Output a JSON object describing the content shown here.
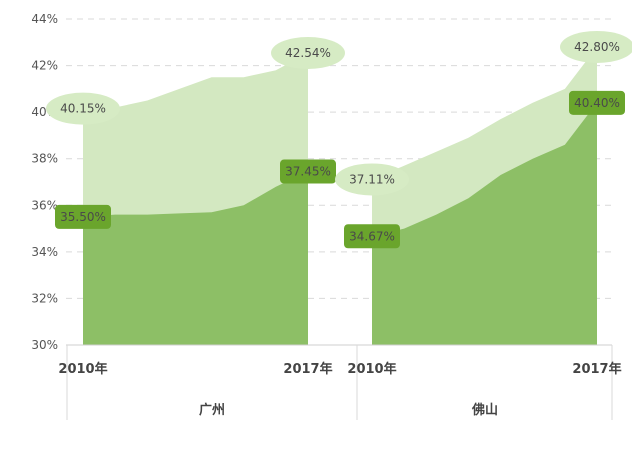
{
  "chart_data": {
    "type": "area",
    "ylim": [
      30,
      44
    ],
    "y_ticks": [
      "30%",
      "32%",
      "34%",
      "36%",
      "38%",
      "40%",
      "42%",
      "44%"
    ],
    "grid": true,
    "groups": [
      {
        "name": "广州",
        "x_labels": [
          "2010年",
          "2017年"
        ],
        "x": [
          2010,
          2011,
          2012,
          2013,
          2014,
          2015,
          2016,
          2017
        ],
        "series": [
          {
            "values": [
              40.15,
              40.2,
              40.5,
              41.0,
              41.5,
              41.5,
              41.8,
              42.54
            ],
            "color": "#d3e8c1",
            "start_label": "40.15%",
            "end_label": "42.54%"
          },
          {
            "values": [
              35.5,
              35.6,
              35.6,
              35.65,
              35.7,
              36.0,
              36.8,
              37.45
            ],
            "color": "#8dbf66",
            "start_label": "35.50%",
            "end_label": "37.45%"
          }
        ]
      },
      {
        "name": "佛山",
        "x_labels": [
          "2010年",
          "2017年"
        ],
        "x": [
          2010,
          2011,
          2012,
          2013,
          2014,
          2015,
          2016,
          2017
        ],
        "series": [
          {
            "values": [
              37.11,
              37.7,
              38.3,
              38.9,
              39.7,
              40.4,
              41.0,
              42.8
            ],
            "color": "#d3e8c1",
            "start_label": "37.11%",
            "end_label": "42.80%"
          },
          {
            "values": [
              34.67,
              35.0,
              35.6,
              36.3,
              37.3,
              38.0,
              38.6,
              40.4
            ],
            "color": "#8dbf66",
            "start_label": "34.67%",
            "end_label": "40.40%"
          }
        ]
      }
    ]
  }
}
